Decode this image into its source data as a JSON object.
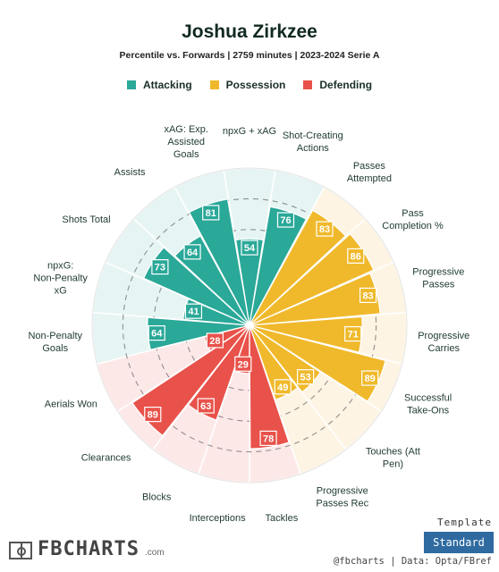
{
  "title": "Joshua Zirkzee",
  "subtitle": "Percentile vs. Forwards | 2759 minutes | 2023-2024 Serie A",
  "legend": [
    {
      "label": "Attacking",
      "color": "#2aa898"
    },
    {
      "label": "Possession",
      "color": "#f0b92b"
    },
    {
      "label": "Defending",
      "color": "#e8524a"
    }
  ],
  "chart_data": {
    "type": "polar-bar",
    "title": "Joshua Zirkzee",
    "range": [
      0,
      100
    ],
    "group_colors": {
      "Attacking": "#2aa898",
      "Possession": "#f0b92b",
      "Defending": "#e8524a"
    },
    "group_background_colors": {
      "Attacking": "#e6f5f3",
      "Possession": "#fdf4e3",
      "Defending": "#fde8e8"
    },
    "categories": [
      {
        "label": "npxG + xAG",
        "value": 54,
        "group": "Attacking"
      },
      {
        "label": "Shot-Creating Actions",
        "value": 76,
        "group": "Attacking"
      },
      {
        "label": "Passes Attempted",
        "value": 83,
        "group": "Possession"
      },
      {
        "label": "Pass Completion %",
        "value": 86,
        "group": "Possession"
      },
      {
        "label": "Progressive Passes",
        "value": 83,
        "group": "Possession"
      },
      {
        "label": "Progressive Carries",
        "value": 71,
        "group": "Possession"
      },
      {
        "label": "Successful Take-Ons",
        "value": 89,
        "group": "Possession"
      },
      {
        "label": "Touches (Att Pen)",
        "value": 53,
        "group": "Possession"
      },
      {
        "label": "Progressive Passes Rec",
        "value": 49,
        "group": "Possession"
      },
      {
        "label": "Tackles",
        "value": 78,
        "group": "Defending"
      },
      {
        "label": "Interceptions",
        "value": 29,
        "group": "Defending"
      },
      {
        "label": "Blocks",
        "value": 63,
        "group": "Defending"
      },
      {
        "label": "Clearances",
        "value": 89,
        "group": "Defending"
      },
      {
        "label": "Aerials Won",
        "value": 28,
        "group": "Defending"
      },
      {
        "label": "Non-Penalty Goals",
        "value": 64,
        "group": "Attacking"
      },
      {
        "label": "npxG: Non-Penalty xG",
        "value": 41,
        "group": "Attacking"
      },
      {
        "label": "Shots Total",
        "value": 73,
        "group": "Attacking"
      },
      {
        "label": "Assists",
        "value": 64,
        "group": "Attacking"
      },
      {
        "label": "xAG: Exp. Assisted Goals",
        "value": 81,
        "group": "Attacking"
      }
    ]
  },
  "footer": {
    "template_label": "Template",
    "template_button": "Standard",
    "brand_name": "FBCHARTS",
    "brand_suffix": ".com",
    "credit": "@fbcharts | Data: Opta/FBref"
  }
}
